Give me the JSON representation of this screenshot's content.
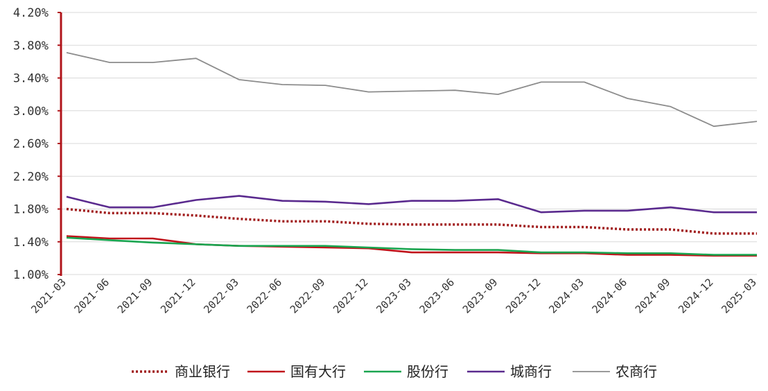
{
  "chart_data": {
    "type": "line",
    "title": "",
    "xlabel": "",
    "ylabel": "",
    "ylim": [
      1.0,
      4.2
    ],
    "yticks": [
      1.0,
      1.4,
      1.8,
      2.2,
      2.6,
      3.0,
      3.4,
      3.8,
      4.2
    ],
    "ytick_labels": [
      "1.00%",
      "1.40%",
      "1.80%",
      "2.20%",
      "2.60%",
      "3.00%",
      "3.40%",
      "3.80%",
      "4.20%"
    ],
    "grid": "horizontal",
    "legend": "bottom",
    "x": [
      "2021-03",
      "2021-06",
      "2021-09",
      "2021-12",
      "2022-03",
      "2022-06",
      "2022-09",
      "2022-12",
      "2023-03",
      "2023-06",
      "2023-09",
      "2023-12",
      "2024-03",
      "2024-06",
      "2024-09",
      "2024-12",
      "2025-03"
    ],
    "series": [
      {
        "name": "商业银行",
        "color": "#a11d1d",
        "style": "dotted",
        "values": [
          1.8,
          1.75,
          1.75,
          1.72,
          1.68,
          1.65,
          1.65,
          1.62,
          1.61,
          1.61,
          1.61,
          1.58,
          1.58,
          1.55,
          1.55,
          1.5,
          1.5
        ]
      },
      {
        "name": "国有大行",
        "color": "#c0121a",
        "style": "solid",
        "values": [
          1.47,
          1.44,
          1.44,
          1.37,
          1.35,
          1.34,
          1.33,
          1.32,
          1.27,
          1.27,
          1.27,
          1.26,
          1.26,
          1.24,
          1.24,
          1.23,
          1.23
        ]
      },
      {
        "name": "股份行",
        "color": "#1aa550",
        "style": "solid",
        "values": [
          1.45,
          1.42,
          1.39,
          1.37,
          1.35,
          1.35,
          1.35,
          1.33,
          1.31,
          1.3,
          1.3,
          1.27,
          1.27,
          1.26,
          1.26,
          1.24,
          1.24
        ]
      },
      {
        "name": "城商行",
        "color": "#5a2a8e",
        "style": "solid",
        "values": [
          1.95,
          1.82,
          1.82,
          1.91,
          1.96,
          1.9,
          1.89,
          1.86,
          1.9,
          1.9,
          1.92,
          1.76,
          1.78,
          1.78,
          1.82,
          1.76,
          1.76
        ]
      },
      {
        "name": "农商行",
        "color": "#8c8c8c",
        "style": "solid",
        "values": [
          3.71,
          3.59,
          3.59,
          3.64,
          3.38,
          3.32,
          3.31,
          3.23,
          3.24,
          3.25,
          3.2,
          3.35,
          3.35,
          3.15,
          3.05,
          2.81,
          2.87
        ]
      }
    ]
  }
}
